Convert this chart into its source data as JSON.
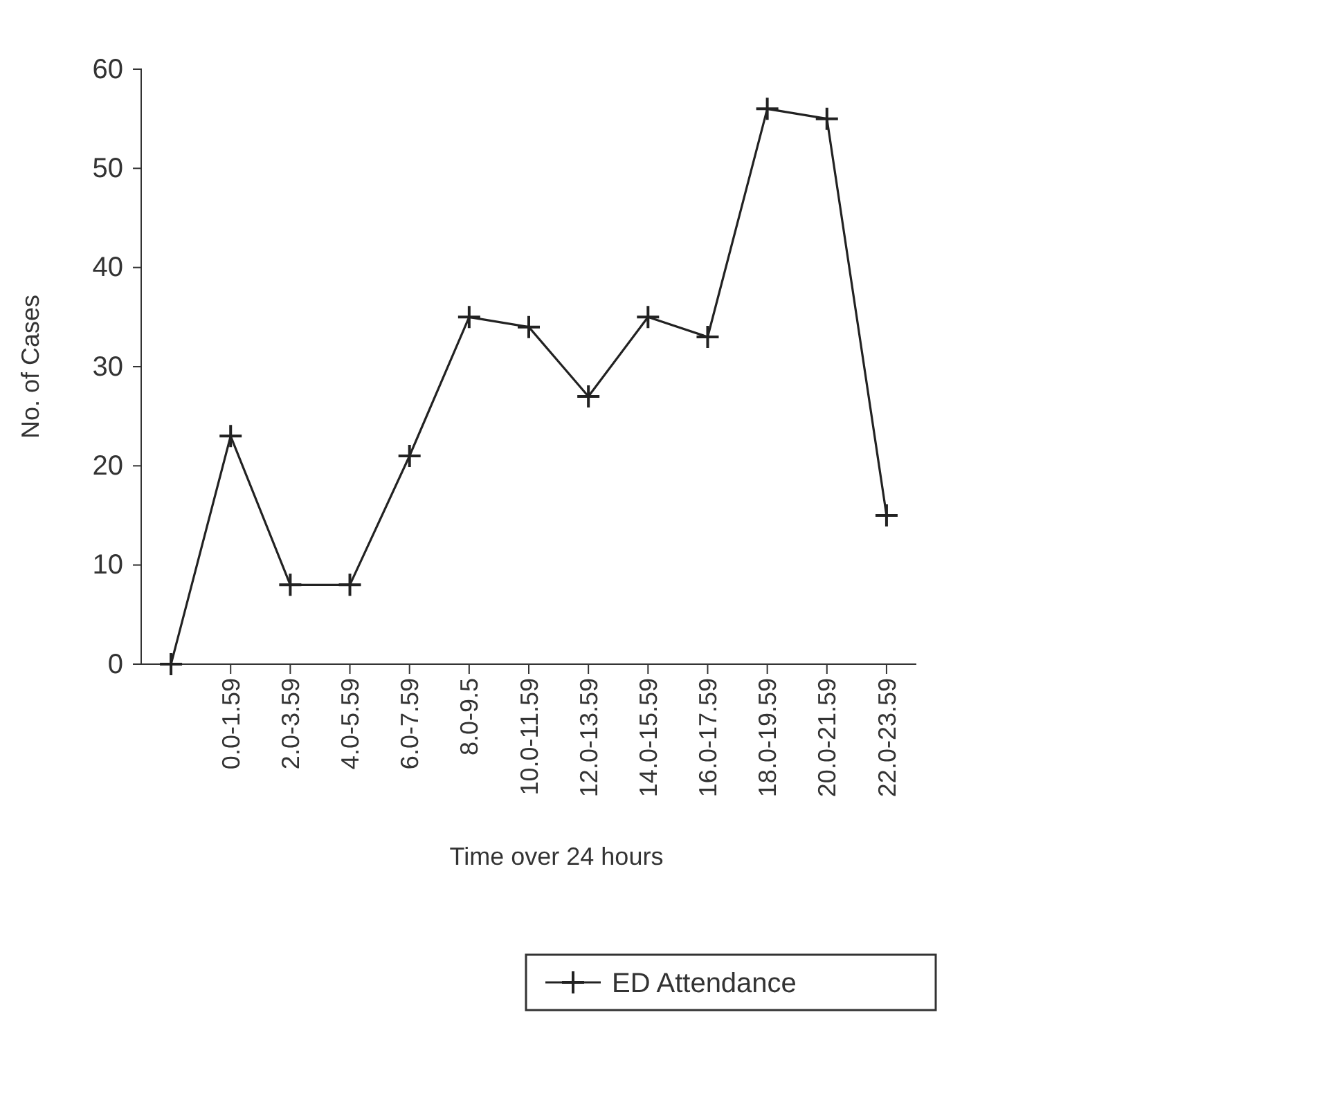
{
  "chart_data": {
    "type": "line",
    "xlabel": "Time over 24 hours",
    "ylabel": "No. of Cases",
    "categories": [
      null,
      "0.0-1.59",
      "2.0-3.59",
      "4.0-5.59",
      "6.0-7.59",
      "8.0-9.5",
      "10.0-11.59",
      "12.0-13.59",
      "14.0-15.59",
      "16.0-17.59",
      "18.0-19.59",
      "20.0-21.59",
      "22.0-23.59"
    ],
    "series": [
      {
        "name": "ED Attendance",
        "color": "#222222",
        "values": [
          0,
          23,
          8,
          8,
          21,
          35,
          34,
          27,
          35,
          33,
          56,
          55,
          15
        ]
      }
    ],
    "ylim": [
      0,
      60
    ],
    "yticks": [
      0,
      10,
      20,
      30,
      40,
      50,
      60
    ],
    "grid": false,
    "legend": "bottom",
    "marker": "cross",
    "line_style": "solid"
  }
}
